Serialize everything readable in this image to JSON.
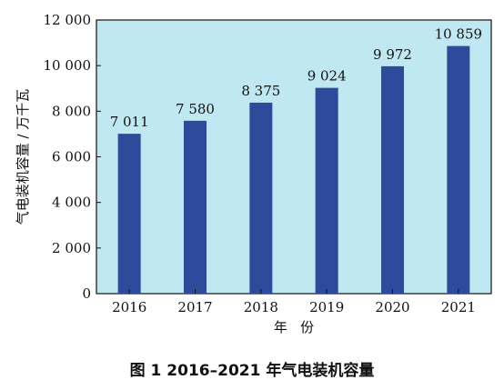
{
  "chart_data": {
    "type": "bar",
    "categories": [
      "2016",
      "2017",
      "2018",
      "2019",
      "2020",
      "2021"
    ],
    "values": [
      7011,
      7580,
      8375,
      9024,
      9972,
      10859
    ],
    "data_labels": [
      "7 011",
      "7 580",
      "8 375",
      "9 024",
      "9 972",
      "10 859"
    ],
    "y_ticks": [
      0,
      2000,
      4000,
      6000,
      8000,
      10000,
      12000
    ],
    "y_tick_labels": [
      "0",
      "2 000",
      "4 000",
      "6 000",
      "8 000",
      "10 000",
      "12 000"
    ],
    "ylim": [
      0,
      12000
    ],
    "xlabel": "年   份",
    "ylabel": "气电装机容量 / 万千瓦",
    "caption": "图 1    2016–2021 年气电装机容量",
    "grid": false,
    "colors": {
      "bar": "#2e4a9b",
      "plot_background": "#bfe8f3",
      "axis": "#111111"
    }
  }
}
